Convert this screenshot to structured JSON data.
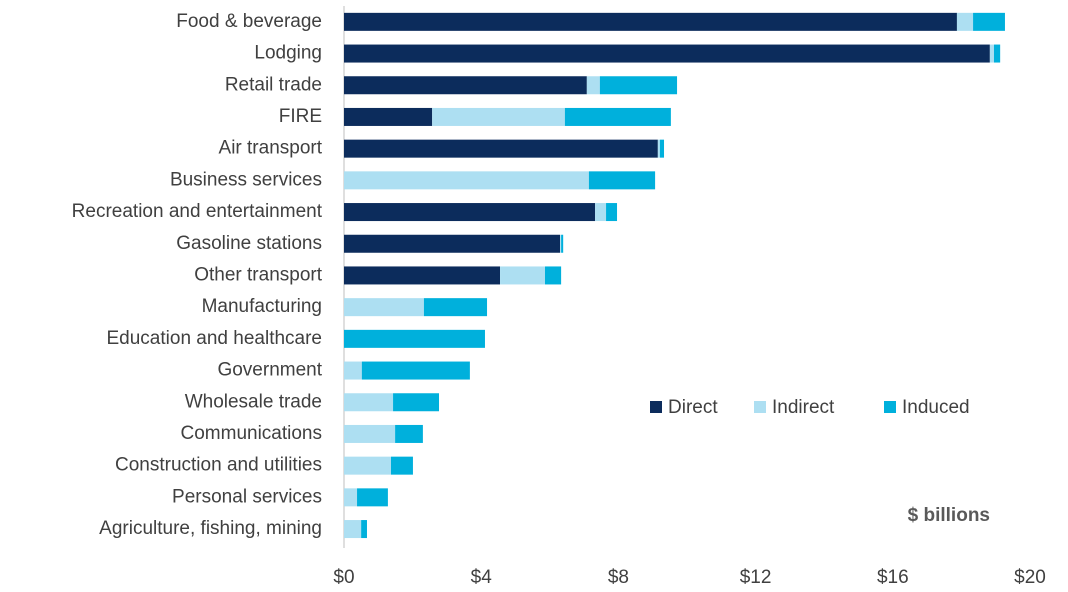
{
  "chart_data": {
    "type": "stacked_bar_horizontal",
    "categories": [
      "Food & beverage",
      "Lodging",
      "Retail trade",
      "FIRE",
      "Air transport",
      "Business services",
      "Recreation and entertainment",
      "Gasoline stations",
      "Other transport",
      "Manufacturing",
      "Education and healthcare",
      "Government",
      "Wholesale trade",
      "Communications",
      "Construction and utilities",
      "Personal services",
      "Agriculture, fishing, mining"
    ],
    "series": [
      {
        "name": "Direct",
        "color": "#0c2c5c",
        "values": [
          17.87,
          18.83,
          7.08,
          2.57,
          9.15,
          0,
          7.32,
          6.3,
          4.55,
          0,
          0,
          0,
          0,
          0,
          0,
          0,
          0
        ]
      },
      {
        "name": "Indirect",
        "color": "#addff2",
        "values": [
          0.47,
          0.12,
          0.38,
          3.87,
          0.06,
          7.14,
          0.32,
          0.03,
          1.31,
          2.33,
          0,
          0.52,
          1.43,
          1.49,
          1.37,
          0.38,
          0.5
        ]
      },
      {
        "name": "Induced",
        "color": "#00b0dc",
        "values": [
          0.93,
          0.18,
          2.25,
          3.09,
          0.12,
          1.93,
          0.32,
          0.06,
          0.47,
          1.84,
          4.11,
          3.15,
          1.34,
          0.81,
          0.64,
          0.9,
          0.17
        ]
      }
    ],
    "xlim": [
      0,
      20
    ],
    "xticks": [
      {
        "value": 0,
        "label": "$0"
      },
      {
        "value": 4,
        "label": "$4"
      },
      {
        "value": 8,
        "label": "$8"
      },
      {
        "value": 12,
        "label": "$12"
      },
      {
        "value": 16,
        "label": "$16"
      },
      {
        "value": 20,
        "label": "$20"
      }
    ],
    "annotation": "$ billions",
    "legend": "center-right"
  }
}
